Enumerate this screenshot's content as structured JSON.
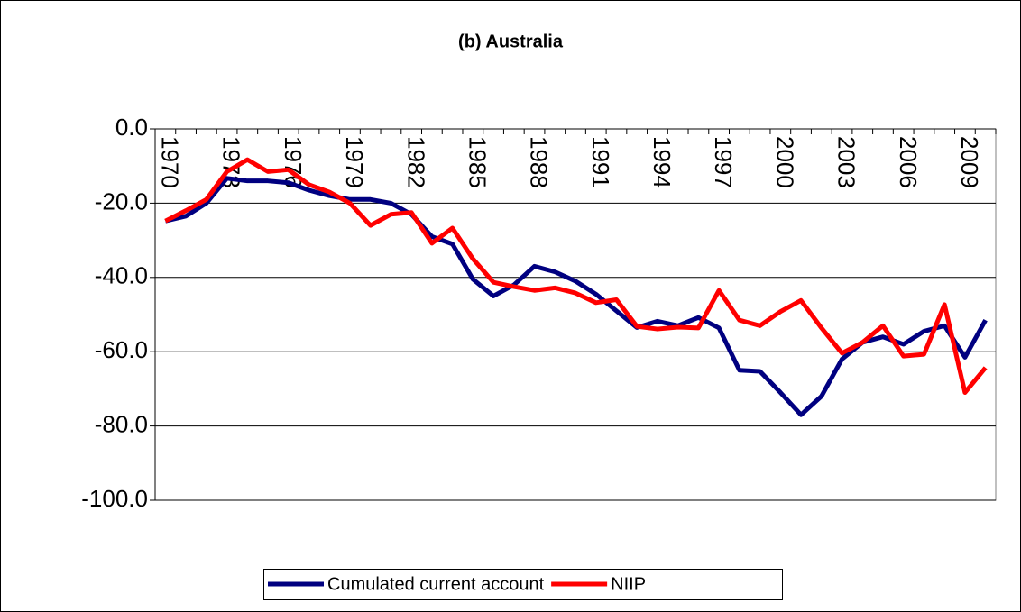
{
  "chart_data": {
    "type": "line",
    "title": "(b) Australia",
    "categories": [
      "1970",
      null,
      null,
      "1973",
      null,
      null,
      "1976",
      null,
      null,
      "1979",
      null,
      null,
      "1982",
      null,
      null,
      "1985",
      null,
      null,
      "1988",
      null,
      null,
      "1991",
      null,
      null,
      "1994",
      null,
      null,
      "1997",
      null,
      null,
      "2000",
      null,
      null,
      "2003",
      null,
      null,
      "2006",
      null,
      null,
      "2009",
      null
    ],
    "series": [
      {
        "name": "Cumulated current account",
        "color": "#000080",
        "values": [
          -24.8,
          -23.5,
          -20,
          -13.3,
          -14,
          -14,
          -14.5,
          -16.5,
          -18,
          -19,
          -19,
          -20,
          -23,
          -29,
          -31,
          -40.5,
          -45,
          -42,
          -37,
          -38.5,
          -41,
          -44.5,
          -49,
          -53.5,
          -51.8,
          -53,
          -50.8,
          -53.6,
          -65,
          -65.3,
          -71,
          -77,
          -72,
          -62,
          -57.5,
          -56,
          -58,
          -54.5,
          -53,
          -61.5,
          -51.5
        ]
      },
      {
        "name": "NIIP",
        "color": "#ff0000",
        "values": [
          -24.8,
          -22,
          -19,
          -11.5,
          -8.3,
          -11.5,
          -11,
          -15,
          -17,
          -20,
          -26,
          -23,
          -22.5,
          -30.8,
          -26.7,
          -35,
          -41.3,
          -42.5,
          -43.5,
          -42.8,
          -44.2,
          -46.8,
          -46,
          -53.2,
          -53.9,
          -53.4,
          -53.6,
          -43.5,
          -51.5,
          -53,
          -49.2,
          -46.2,
          -53.6,
          -60.4,
          -57.5,
          -53,
          -61.2,
          -60.7,
          -47.3,
          -71,
          -64.3
        ]
      }
    ],
    "ylim": [
      -100,
      0
    ],
    "yticks": [
      {
        "value": -100,
        "label": "-100.0"
      },
      {
        "value": -80,
        "label": "-80.0"
      },
      {
        "value": -60,
        "label": "-60.0"
      },
      {
        "value": -40,
        "label": "-40.0"
      },
      {
        "value": -20,
        "label": "-20.0"
      },
      {
        "value": 0,
        "label": "0.0"
      }
    ],
    "grid": true,
    "legend": "bottom"
  }
}
